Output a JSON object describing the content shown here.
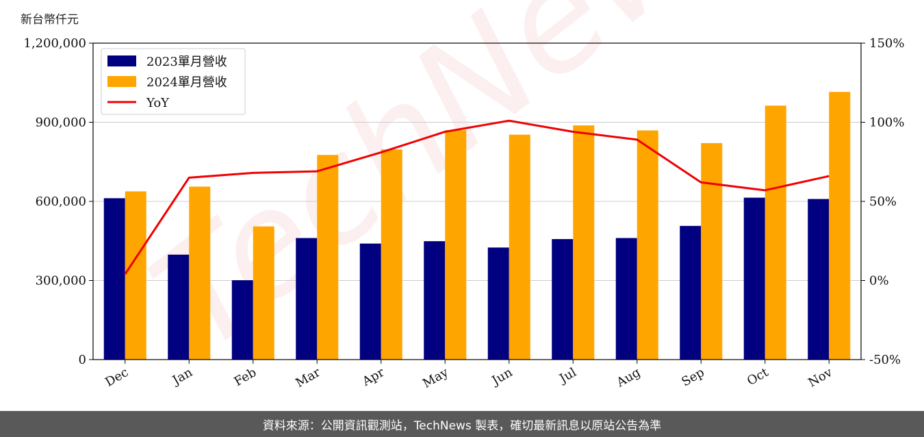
{
  "unit_label": "新台幣仟元",
  "footer_text": "資料來源：公開資訊觀測站，TechNews 製表，確切最新訊息以原站公告為準",
  "watermark_text": "TechNews",
  "colors": {
    "series_2023": "#000080",
    "series_2024": "#FFA500",
    "yoy": "#EE0000",
    "grid": "#cccccc",
    "footer_bg": "#595959"
  },
  "chart_data": {
    "type": "bar",
    "categories": [
      "Dec",
      "Jan",
      "Feb",
      "Mar",
      "Apr",
      "May",
      "Jun",
      "Jul",
      "Aug",
      "Sep",
      "Oct",
      "Nov"
    ],
    "series": [
      {
        "name": "2023單月營收",
        "type": "bar",
        "axis": "left",
        "values": [
          612000,
          398000,
          301000,
          461000,
          440000,
          449000,
          425000,
          457000,
          461000,
          507000,
          614000,
          609000
        ]
      },
      {
        "name": "2024單月營收",
        "type": "bar",
        "axis": "left",
        "values": [
          638000,
          656000,
          505000,
          776000,
          797000,
          870000,
          853000,
          888000,
          869000,
          821000,
          963000,
          1015000
        ]
      },
      {
        "name": "YoY",
        "type": "line",
        "axis": "right",
        "values": [
          4,
          65,
          68,
          69,
          81,
          94,
          101,
          94,
          89,
          62,
          57,
          66
        ]
      }
    ],
    "y_left": {
      "min": 0,
      "max": 1200000,
      "ticks": [
        "0",
        "300,000",
        "600,000",
        "900,000",
        "1,200,000"
      ]
    },
    "y_right": {
      "min": -50,
      "max": 150,
      "ticks": [
        "-50%",
        "0%",
        "50%",
        "100%",
        "150%"
      ]
    },
    "grid": "horizontal",
    "legend": "top-left"
  }
}
